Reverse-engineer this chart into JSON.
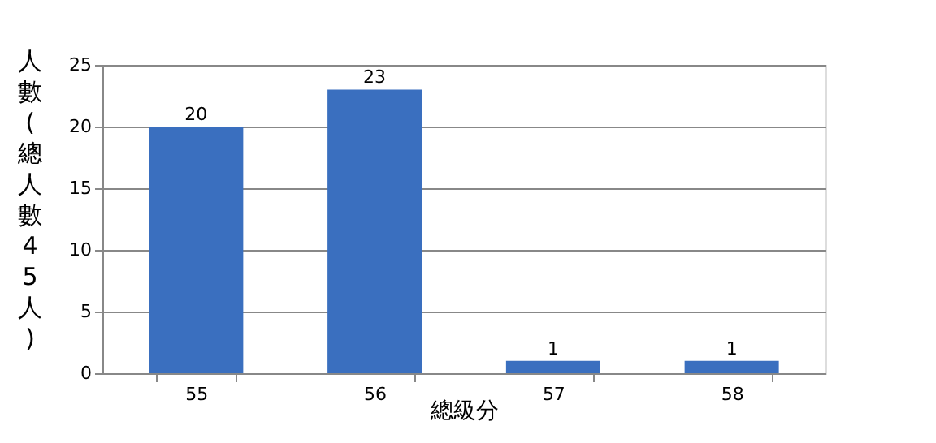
{
  "chart_data": {
    "type": "bar",
    "xlabel": "總級分",
    "ylabel": "人數(總人數45人)",
    "categories": [
      "55",
      "56",
      "57",
      "58"
    ],
    "values": [
      20,
      23,
      1,
      1
    ],
    "color": "#3a6fbf",
    "ylim": [
      0,
      25
    ],
    "yticks": [
      0,
      5,
      10,
      15,
      20,
      25
    ],
    "grid": "y",
    "data_labels": true
  }
}
